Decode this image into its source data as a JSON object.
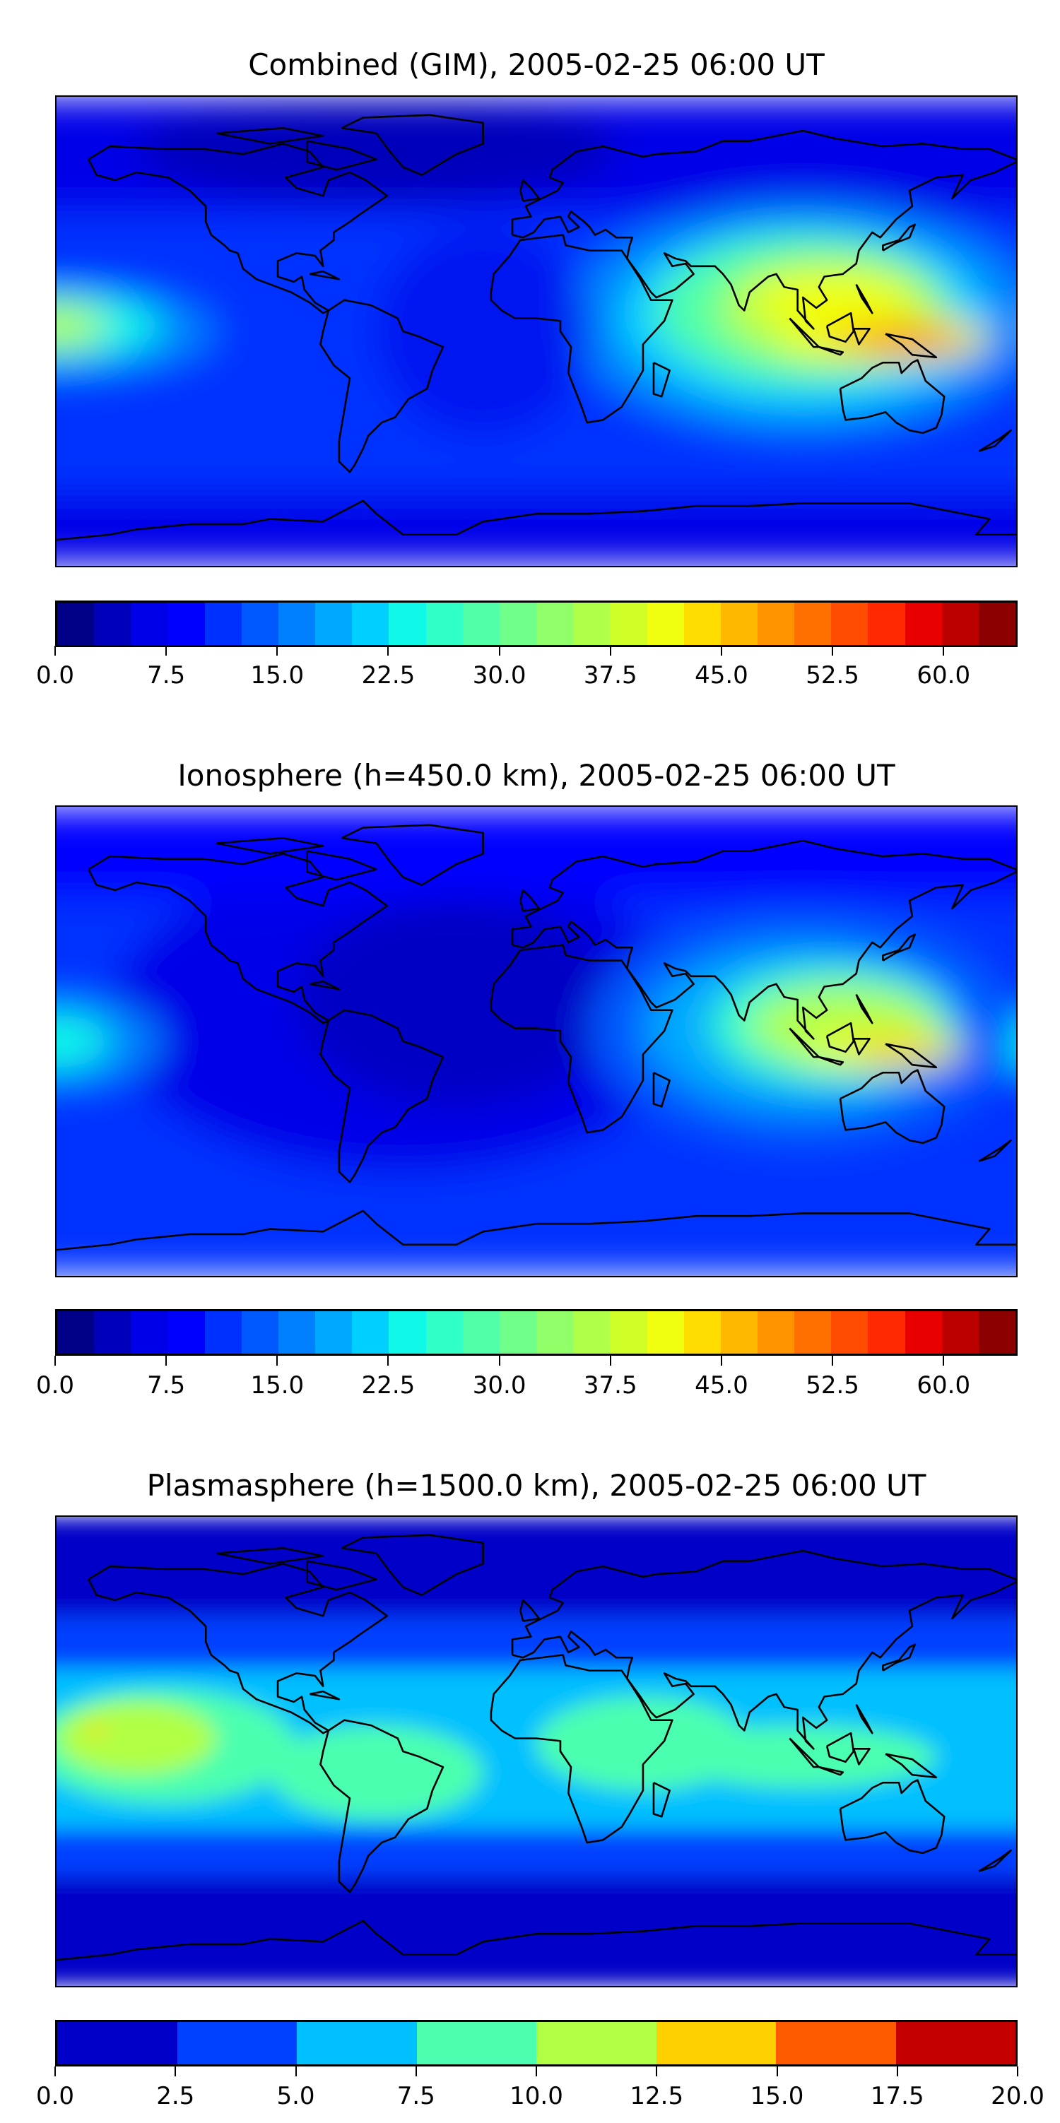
{
  "chart_data": [
    {
      "type": "heatmap",
      "title": "Combined (GIM), 2005-02-25 06:00 UT",
      "projection": "equirectangular world map with coastlines",
      "colorbar": {
        "range": [
          0,
          65
        ],
        "step": 2.5,
        "ticks": [
          "0.0",
          "7.5",
          "15.0",
          "22.5",
          "30.0",
          "37.5",
          "45.0",
          "52.5",
          "60.0"
        ],
        "colors": [
          "#000088",
          "#0000bb",
          "#0000e8",
          "#0000ff",
          "#0030ff",
          "#0058ff",
          "#0080ff",
          "#00a8ff",
          "#00d0ff",
          "#10f8e8",
          "#30ffc8",
          "#50ffa8",
          "#70ff88",
          "#90ff68",
          "#b0ff48",
          "#d0ff28",
          "#f0ff10",
          "#ffdc00",
          "#ffb800",
          "#ff9400",
          "#ff7000",
          "#ff4c00",
          "#ff2800",
          "#e80000",
          "#bb0000",
          "#8c0000"
        ]
      },
      "features": "peak ~50 near Indonesia (lon 130, lat -5); values 35-45 over S/SE Asia; 20-30 over central Pacific equator; background ~8-12"
    },
    {
      "type": "heatmap",
      "title": "Ionosphere  (h=450.0 km), 2005-02-25 06:00 UT",
      "projection": "equirectangular world map with coastlines",
      "colorbar": {
        "range": [
          0,
          65
        ],
        "step": 2.5,
        "ticks": [
          "0.0",
          "7.5",
          "15.0",
          "22.5",
          "30.0",
          "37.5",
          "45.0",
          "52.5",
          "60.0"
        ],
        "colors": [
          "#000088",
          "#0000bb",
          "#0000e8",
          "#0000ff",
          "#0030ff",
          "#0058ff",
          "#0080ff",
          "#00a8ff",
          "#00d0ff",
          "#10f8e8",
          "#30ffc8",
          "#50ffa8",
          "#70ff88",
          "#90ff68",
          "#b0ff48",
          "#d0ff28",
          "#f0ff10",
          "#ffdc00",
          "#ffb800",
          "#ff9400",
          "#ff7000",
          "#ff4c00",
          "#ff2800",
          "#e80000",
          "#bb0000",
          "#8c0000"
        ]
      },
      "features": "peak ~45 near Indonesia; 25-35 over S Asia; ~2-5 over Americas/Atlantic"
    },
    {
      "type": "heatmap",
      "title": "Plasmasphere (h=1500.0 km), 2005-02-25 06:00 UT",
      "projection": "equirectangular world map with coastlines",
      "colorbar": {
        "range": [
          0,
          20
        ],
        "step": 2.5,
        "ticks": [
          "0.0",
          "2.5",
          "5.0",
          "7.5",
          "10.0",
          "12.5",
          "15.0",
          "17.5",
          "20.0"
        ],
        "colors": [
          "#0000c8",
          "#0040ff",
          "#00c0ff",
          "#4cffb0",
          "#b0ff45",
          "#ffd000",
          "#ff5a00",
          "#c40000"
        ]
      },
      "features": "0-2.5 at high latitudes, 2.5-5 mid latitudes, 5-7.5 tropics, 7.5-10 patches over Africa/S. America/Indian Ocean, 10-12.5 central Pacific, small 12.5-15 spot"
    }
  ]
}
